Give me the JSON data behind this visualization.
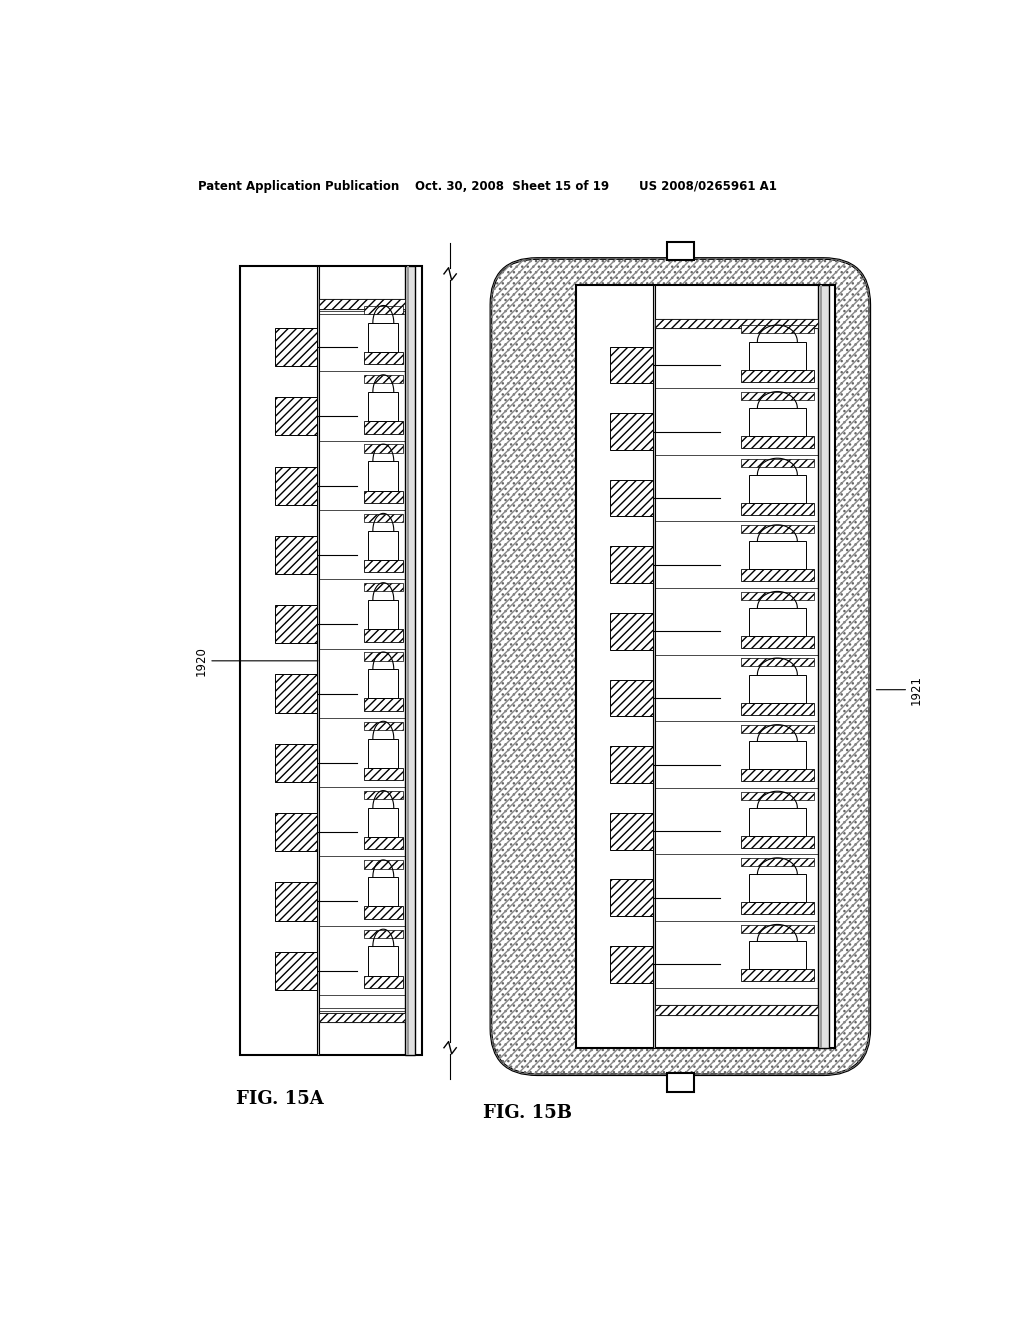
{
  "title_left": "Patent Application Publication",
  "title_mid": "Oct. 30, 2008  Sheet 15 of 19",
  "title_right": "US 2008/0265961 A1",
  "fig_a_label": "FIG. 15A",
  "fig_b_label": "FIG. 15B",
  "ref_1920": "1920",
  "ref_1921": "1921",
  "bg_color": "#ffffff",
  "line_color": "#000000"
}
